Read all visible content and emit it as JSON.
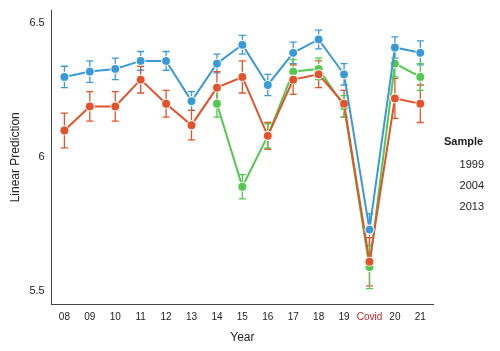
{
  "chart_data": {
    "type": "line",
    "x_label": "Year",
    "y_label": "Linear Prediction",
    "legend_title": "Sample",
    "legend": "right",
    "grid": false,
    "marker": "circle",
    "categories": [
      "08",
      "09",
      "10",
      "11",
      "12",
      "13",
      "14",
      "15",
      "16",
      "17",
      "18",
      "19",
      "Covid",
      "20",
      "21"
    ],
    "ylim": [
      5.45,
      6.55
    ],
    "yticks": [
      5.5,
      6,
      6.5
    ],
    "series": [
      {
        "name": "1999",
        "color": "#3b9ad6",
        "values": [
          6.3,
          6.32,
          6.33,
          6.36,
          6.36,
          6.21,
          6.35,
          6.42,
          6.27,
          6.39,
          6.44,
          6.31,
          5.73,
          6.41,
          6.39
        ],
        "errors": [
          0.04,
          0.04,
          0.04,
          0.035,
          0.035,
          0.035,
          0.035,
          0.035,
          0.04,
          0.04,
          0.035,
          0.04,
          0.06,
          0.04,
          0.045
        ]
      },
      {
        "name": "2004",
        "color": "#e3522b",
        "values": [
          6.1,
          6.19,
          6.19,
          6.29,
          6.2,
          6.12,
          6.26,
          6.3,
          6.08,
          6.29,
          6.31,
          6.2,
          5.61,
          6.22,
          6.2
        ],
        "errors": [
          0.065,
          0.055,
          0.055,
          0.05,
          0.05,
          0.055,
          0.06,
          0.06,
          0.05,
          0.055,
          0.05,
          0.05,
          0.09,
          0.075,
          0.07
        ]
      },
      {
        "name": "2013",
        "color": "#52c94e",
        "values": [
          null,
          null,
          null,
          null,
          null,
          null,
          6.2,
          5.89,
          6.08,
          6.32,
          6.33,
          6.19,
          5.59,
          6.35,
          6.3
        ],
        "errors": [
          null,
          null,
          null,
          null,
          null,
          null,
          0.05,
          0.045,
          0.045,
          0.045,
          0.04,
          0.04,
          0.08,
          0.05,
          0.05
        ]
      }
    ]
  }
}
